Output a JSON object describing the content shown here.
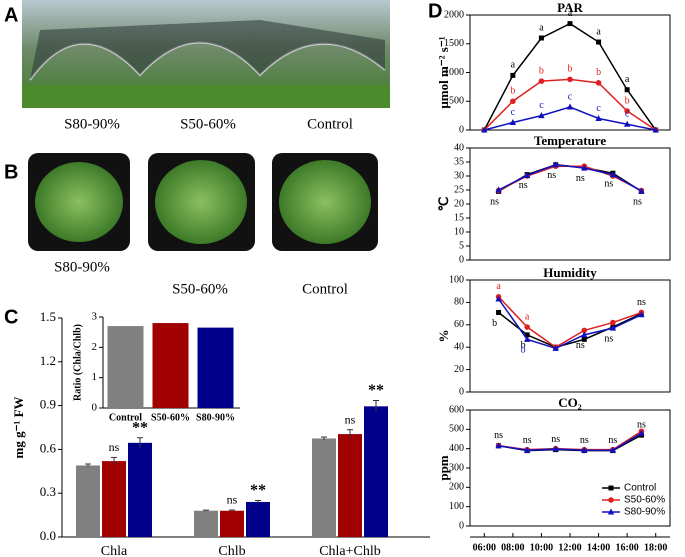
{
  "panel_labels": [
    "A",
    "B",
    "C",
    "D"
  ],
  "photo_captions": {
    "A": [
      "S80-90%",
      "S50-60%",
      "Control"
    ],
    "B": [
      "S80-90%",
      "S50-60%",
      "Control"
    ]
  },
  "chart_data": [
    {
      "type": "bar",
      "y_label": "mg g⁻¹ FW",
      "categories": [
        "Chla",
        "Chlb",
        "Chla+Chlb"
      ],
      "series": [
        {
          "color": "#808080",
          "values": [
            0.49,
            0.18,
            0.675
          ],
          "errors": [
            0.01,
            0.004,
            0.01
          ]
        },
        {
          "color": "#a00000",
          "values": [
            0.52,
            0.18,
            0.705
          ],
          "errors": [
            0.025,
            0.005,
            0.03
          ],
          "annotations": [
            "ns",
            "ns",
            "ns"
          ]
        },
        {
          "color": "#00008b",
          "values": [
            0.645,
            0.24,
            0.895
          ],
          "errors": [
            0.035,
            0.01,
            0.04
          ],
          "annotations": [
            "**",
            "**",
            "**"
          ]
        }
      ],
      "ylim": [
        0,
        1.5
      ],
      "yticks": [
        {
          "value": 0,
          "label": "0.0"
        },
        0.3,
        0.6,
        0.9,
        1.2,
        1.5
      ]
    },
    {
      "type": "bar",
      "y_label": "Ratio (Chla/Chlb)",
      "categories": [
        "Control",
        "S50-60%",
        "S80-90%"
      ],
      "values": [
        2.7,
        2.8,
        2.65
      ],
      "colors": [
        "#808080",
        "#a00000",
        "#00008b"
      ],
      "ylim": [
        0,
        3
      ],
      "yticks": [
        0,
        1,
        2,
        3
      ]
    },
    {
      "type": "line",
      "title": "PAR",
      "y_label": "μmol m⁻² s⁻¹",
      "x": [
        6,
        8,
        10,
        12,
        14,
        16,
        18
      ],
      "xlim": [
        5,
        19
      ],
      "series": [
        {
          "color": "#000000",
          "marker": "square",
          "values": [
            0,
            950,
            1600,
            1850,
            1530,
            700,
            0
          ],
          "point_labels": [
            null,
            "a",
            "a",
            "a",
            "a",
            "a",
            null
          ],
          "label_side": "above"
        },
        {
          "color": "#e02020",
          "marker": "circle",
          "values": [
            0,
            500,
            850,
            880,
            820,
            330,
            0
          ],
          "point_labels": [
            null,
            "b",
            "b",
            "b",
            "b",
            "b",
            null
          ],
          "label_side": "above"
        },
        {
          "color": "#1010c0",
          "marker": "triangle",
          "values": [
            0,
            130,
            250,
            400,
            200,
            100,
            0
          ],
          "point_labels": [
            null,
            "c",
            "c",
            "c",
            "c",
            "c",
            null
          ],
          "label_side": "above"
        }
      ],
      "ylim": [
        0,
        2000
      ],
      "yticks": [
        0,
        500,
        1000,
        1500,
        2000
      ]
    },
    {
      "type": "line",
      "title": "Temperature",
      "y_label": "℃",
      "x": [
        7,
        9,
        11,
        13,
        15,
        17
      ],
      "xlim": [
        5,
        19
      ],
      "series": [
        {
          "color": "#000000",
          "marker": "square",
          "values": [
            24.5,
            30.5,
            34,
            33,
            31,
            24.5
          ],
          "point_labels": [
            "ns",
            "ns",
            "ns",
            "ns",
            "ns",
            "ns"
          ],
          "label_side": "below"
        },
        {
          "color": "#e02020",
          "marker": "circle",
          "values": [
            24.8,
            30,
            33.5,
            33.5,
            30,
            24.8
          ]
        },
        {
          "color": "#1010c0",
          "marker": "triangle",
          "values": [
            25,
            30.2,
            34,
            32.8,
            30.5,
            24.6
          ]
        }
      ],
      "ylim": [
        0,
        40
      ],
      "yticks": [
        0,
        5,
        10,
        15,
        20,
        25,
        30,
        35,
        40
      ]
    },
    {
      "type": "line",
      "title": "Humidity",
      "y_label": "%",
      "x": [
        7,
        9,
        11,
        13,
        15,
        17
      ],
      "xlim": [
        5,
        19
      ],
      "series": [
        {
          "color": "#000000",
          "marker": "square",
          "values": [
            71,
            51,
            40,
            47,
            58,
            70
          ],
          "point_labels": [
            "b",
            "b",
            null,
            null,
            null,
            null
          ],
          "label_side": "below"
        },
        {
          "color": "#e02020",
          "marker": "circle",
          "values": [
            85,
            58,
            40,
            55,
            62,
            71
          ],
          "point_labels": [
            "a",
            "a",
            null,
            null,
            null,
            "ns"
          ],
          "label_side": "above"
        },
        {
          "color": "#1010c0",
          "marker": "triangle",
          "values": [
            83,
            47,
            39,
            51,
            57,
            69
          ],
          "point_labels": [
            null,
            "b",
            null,
            "ns",
            "ns",
            null
          ],
          "label_side": "below"
        }
      ],
      "ylim": [
        0,
        100
      ],
      "yticks": [
        0,
        20,
        40,
        60,
        80,
        100
      ]
    },
    {
      "type": "line",
      "title": "CO₂",
      "y_label": "ppm",
      "x": [
        7,
        9,
        11,
        13,
        15,
        17
      ],
      "xlim": [
        5,
        19
      ],
      "series": [
        {
          "name": "Control",
          "color": "#000000",
          "marker": "square",
          "values": [
            415,
            390,
            395,
            390,
            390,
            470
          ],
          "point_labels": [
            "ns",
            "ns",
            "ns",
            "ns",
            "ns",
            "ns"
          ],
          "label_side": "above"
        },
        {
          "name": "S50-60%",
          "color": "#e02020",
          "marker": "circle",
          "values": [
            415,
            395,
            400,
            395,
            395,
            490
          ]
        },
        {
          "name": "S80-90%",
          "color": "#1010c0",
          "marker": "triangle",
          "values": [
            415,
            392,
            398,
            392,
            392,
            480
          ]
        }
      ],
      "ylim": [
        0,
        600
      ],
      "yticks": [
        0,
        100,
        200,
        300,
        400,
        500,
        600
      ],
      "xticks": [
        {
          "value": 6,
          "label": "06:00"
        },
        {
          "value": 8,
          "label": "08:00"
        },
        {
          "value": 10,
          "label": "10:00"
        },
        {
          "value": 12,
          "label": "12:00"
        },
        {
          "value": 14,
          "label": "14:00"
        },
        {
          "value": 16,
          "label": "16:00"
        },
        {
          "value": 18,
          "label": "18:00"
        }
      ],
      "legend": "lower right"
    }
  ]
}
